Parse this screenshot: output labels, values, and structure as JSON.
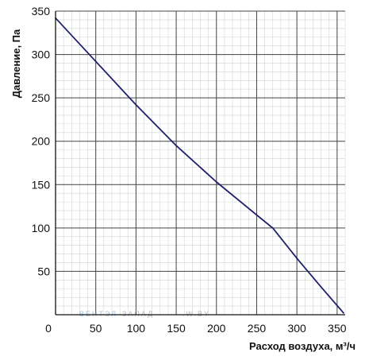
{
  "chart_data": {
    "type": "line",
    "title": "",
    "xlabel": "Расход воздуха, м³/ч",
    "ylabel": "Давление, Па",
    "xlim": [
      0,
      360
    ],
    "ylim": [
      0,
      350
    ],
    "x_ticks": [
      0,
      50,
      100,
      150,
      200,
      250,
      300,
      350
    ],
    "y_ticks": [
      50,
      100,
      150,
      200,
      250,
      300,
      350
    ],
    "grid": true,
    "minor_grid": true,
    "legend": "none",
    "series": [
      {
        "color": "#1f1f6e",
        "x": [
          0,
          50,
          100,
          150,
          200,
          250,
          270,
          300,
          330,
          358
        ],
        "y": [
          342,
          292,
          242,
          195,
          153,
          115,
          100,
          65,
          32,
          2
        ]
      }
    ]
  },
  "watermark": {
    "part1": "ВЕНТЭЛ",
    "part2": "ЗАПАД",
    "part3": ".W.BY",
    "color1": "#9ec4e0",
    "color2": "#b8b8b8"
  }
}
